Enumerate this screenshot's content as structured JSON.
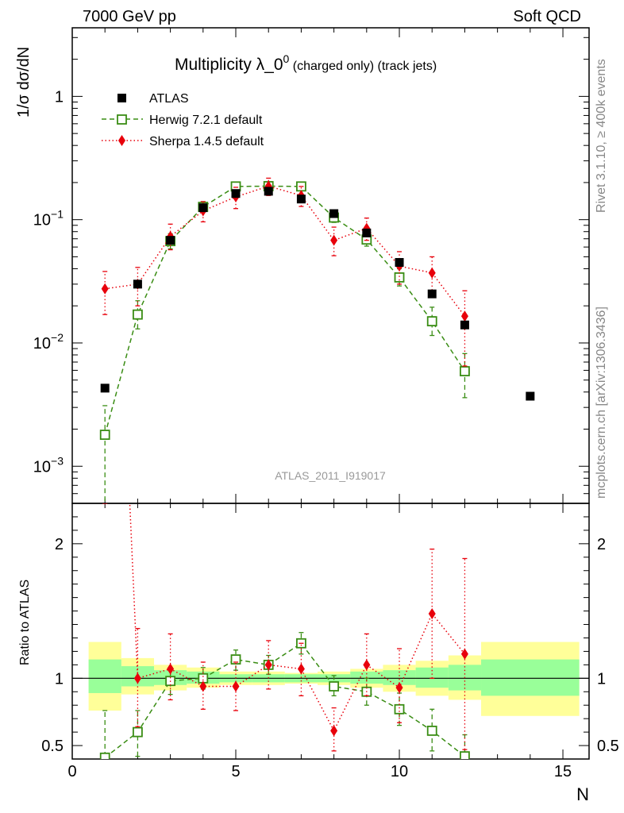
{
  "header": {
    "left": "7000 GeV pp",
    "right": "Soft QCD"
  },
  "side_labels": {
    "rivet": "Rivet 3.1.10, ≥ 400k events",
    "mcplots": "mcplots.cern.ch [arXiv:1306.3436]"
  },
  "chart_data": {
    "type": "scatter",
    "title_main": "Multiplicity λ_0",
    "title_sup": "0",
    "title_sub": " (charged only) (track jets)",
    "watermark": "ATLAS_2011_I919017",
    "xlabel": "N",
    "ylabel_top": "1/σ dσ/dN",
    "ylabel_bottom": "Ratio to ATLAS",
    "xlim": [
      0,
      15.8
    ],
    "ylim_top": [
      0.0005,
      3.6
    ],
    "ylim_bottom": [
      0.4,
      2.3
    ],
    "x_ticks": [
      {
        "v": 0,
        "label": "0"
      },
      {
        "v": 5,
        "label": "5"
      },
      {
        "v": 10,
        "label": "10"
      },
      {
        "v": 15,
        "label": "15"
      }
    ],
    "y_ticks_top": [
      {
        "v": 0.001,
        "base": "10",
        "exp": "−3"
      },
      {
        "v": 0.01,
        "base": "10",
        "exp": "−2"
      },
      {
        "v": 0.1,
        "base": "10",
        "exp": "−1"
      },
      {
        "v": 1,
        "base": "1",
        "exp": ""
      }
    ],
    "y_ticks_bottom": [
      {
        "v": 0.5,
        "label": "0.5"
      },
      {
        "v": 1,
        "label": "1"
      },
      {
        "v": 2,
        "label": "2"
      }
    ],
    "legend": [
      {
        "name": "ATLAS",
        "marker": "square-filled",
        "color": "#000000"
      },
      {
        "name": "Herwig 7.2.1 default",
        "marker": "square-open",
        "color": "#3a8d14"
      },
      {
        "name": "Sherpa 1.4.5 default",
        "marker": "diamond",
        "color": "#e8000b"
      }
    ],
    "bands": [
      {
        "x0": 0.5,
        "x1": 1.5,
        "green": [
          0.89,
          1.14
        ],
        "yellow": [
          0.76,
          1.27
        ]
      },
      {
        "x0": 1.5,
        "x1": 2.5,
        "green": [
          0.94,
          1.09
        ],
        "yellow": [
          0.88,
          1.15
        ]
      },
      {
        "x0": 2.5,
        "x1": 3.5,
        "green": [
          0.95,
          1.06
        ],
        "yellow": [
          0.91,
          1.1
        ]
      },
      {
        "x0": 3.5,
        "x1": 4.5,
        "green": [
          0.96,
          1.05
        ],
        "yellow": [
          0.93,
          1.08
        ]
      },
      {
        "x0": 4.5,
        "x1": 5.5,
        "green": [
          0.97,
          1.03
        ],
        "yellow": [
          0.95,
          1.05
        ]
      },
      {
        "x0": 5.5,
        "x1": 6.5,
        "green": [
          0.97,
          1.03
        ],
        "yellow": [
          0.95,
          1.05
        ]
      },
      {
        "x0": 6.5,
        "x1": 7.5,
        "green": [
          0.97,
          1.03
        ],
        "yellow": [
          0.96,
          1.04
        ]
      },
      {
        "x0": 7.5,
        "x1": 8.5,
        "green": [
          0.97,
          1.03
        ],
        "yellow": [
          0.95,
          1.05
        ]
      },
      {
        "x0": 8.5,
        "x1": 9.5,
        "green": [
          0.96,
          1.05
        ],
        "yellow": [
          0.93,
          1.07
        ]
      },
      {
        "x0": 9.5,
        "x1": 10.5,
        "green": [
          0.95,
          1.06
        ],
        "yellow": [
          0.9,
          1.1
        ]
      },
      {
        "x0": 10.5,
        "x1": 11.5,
        "green": [
          0.93,
          1.08
        ],
        "yellow": [
          0.87,
          1.13
        ]
      },
      {
        "x0": 11.5,
        "x1": 12.5,
        "green": [
          0.91,
          1.1
        ],
        "yellow": [
          0.84,
          1.17
        ]
      },
      {
        "x0": 12.5,
        "x1": 15.5,
        "green": [
          0.87,
          1.14
        ],
        "yellow": [
          0.72,
          1.27
        ]
      }
    ],
    "series": [
      {
        "name": "ATLAS",
        "points": [
          {
            "x": 1,
            "y": 0.0043
          },
          {
            "x": 2,
            "y": 0.03
          },
          {
            "x": 3,
            "y": 0.068
          },
          {
            "x": 4,
            "y": 0.125
          },
          {
            "x": 5,
            "y": 0.163
          },
          {
            "x": 6,
            "y": 0.17
          },
          {
            "x": 7,
            "y": 0.147
          },
          {
            "x": 8,
            "y": 0.112
          },
          {
            "x": 9,
            "y": 0.078
          },
          {
            "x": 10,
            "y": 0.045
          },
          {
            "x": 11,
            "y": 0.025
          },
          {
            "x": 12,
            "y": 0.014
          },
          {
            "x": 14,
            "y": 0.0037
          }
        ]
      },
      {
        "name": "Herwig 7.2.1 default",
        "points": [
          {
            "x": 1,
            "y": 0.0018,
            "lo": 0.00045,
            "hi": 0.0031
          },
          {
            "x": 2,
            "y": 0.017,
            "lo": 0.013,
            "hi": 0.022
          },
          {
            "x": 3,
            "y": 0.067,
            "lo": 0.058,
            "hi": 0.077
          },
          {
            "x": 4,
            "y": 0.127,
            "lo": 0.115,
            "hi": 0.14
          },
          {
            "x": 5,
            "y": 0.186,
            "lo": 0.172,
            "hi": 0.2
          },
          {
            "x": 6,
            "y": 0.187,
            "lo": 0.174,
            "hi": 0.2
          },
          {
            "x": 7,
            "y": 0.186,
            "lo": 0.172,
            "hi": 0.2
          },
          {
            "x": 8,
            "y": 0.104,
            "lo": 0.095,
            "hi": 0.114
          },
          {
            "x": 9,
            "y": 0.069,
            "lo": 0.061,
            "hi": 0.078
          },
          {
            "x": 10,
            "y": 0.034,
            "lo": 0.029,
            "hi": 0.04
          },
          {
            "x": 11,
            "y": 0.015,
            "lo": 0.0115,
            "hi": 0.0195
          },
          {
            "x": 12,
            "y": 0.0059,
            "lo": 0.0036,
            "hi": 0.0082
          }
        ],
        "ratio": [
          {
            "x": 1,
            "y": 0.41,
            "lo": 0.3,
            "hi": 0.76
          },
          {
            "x": 2,
            "y": 0.6,
            "lo": 0.42,
            "hi": 0.76
          },
          {
            "x": 3,
            "y": 0.98,
            "lo": 0.88,
            "hi": 1.08
          },
          {
            "x": 4,
            "y": 1.0,
            "lo": 0.92,
            "hi": 1.08
          },
          {
            "x": 5,
            "y": 1.14,
            "lo": 1.06,
            "hi": 1.21
          },
          {
            "x": 6,
            "y": 1.1,
            "lo": 1.03,
            "hi": 1.17
          },
          {
            "x": 7,
            "y": 1.26,
            "lo": 1.18,
            "hi": 1.34
          },
          {
            "x": 8,
            "y": 0.94,
            "lo": 0.87,
            "hi": 1.02
          },
          {
            "x": 9,
            "y": 0.9,
            "lo": 0.8,
            "hi": 1.0
          },
          {
            "x": 10,
            "y": 0.77,
            "lo": 0.65,
            "hi": 0.89
          },
          {
            "x": 11,
            "y": 0.61,
            "lo": 0.46,
            "hi": 0.77
          },
          {
            "x": 12,
            "y": 0.42,
            "lo": 0.26,
            "hi": 0.58
          }
        ]
      },
      {
        "name": "Sherpa 1.4.5 default",
        "points": [
          {
            "x": 1,
            "y": 0.0275,
            "lo": 0.017,
            "hi": 0.038
          },
          {
            "x": 2,
            "y": 0.03,
            "lo": 0.02,
            "hi": 0.041
          },
          {
            "x": 3,
            "y": 0.073,
            "lo": 0.057,
            "hi": 0.092
          },
          {
            "x": 4,
            "y": 0.118,
            "lo": 0.096,
            "hi": 0.14
          },
          {
            "x": 5,
            "y": 0.153,
            "lo": 0.123,
            "hi": 0.183
          },
          {
            "x": 6,
            "y": 0.187,
            "lo": 0.157,
            "hi": 0.217
          },
          {
            "x": 7,
            "y": 0.157,
            "lo": 0.128,
            "hi": 0.186
          },
          {
            "x": 8,
            "y": 0.068,
            "lo": 0.051,
            "hi": 0.087
          },
          {
            "x": 9,
            "y": 0.085,
            "lo": 0.068,
            "hi": 0.103
          },
          {
            "x": 10,
            "y": 0.042,
            "lo": 0.03,
            "hi": 0.055
          },
          {
            "x": 11,
            "y": 0.037,
            "lo": 0.025,
            "hi": 0.05
          },
          {
            "x": 12,
            "y": 0.0165,
            "lo": 0.0065,
            "hi": 0.0265
          }
        ],
        "ratio": [
          {
            "x": 1,
            "y": 6.4,
            "lo": 2.3,
            "hi": 9.0
          },
          {
            "x": 2,
            "y": 1.0,
            "lo": 0.64,
            "hi": 1.37
          },
          {
            "x": 3,
            "y": 1.07,
            "lo": 0.84,
            "hi": 1.33
          },
          {
            "x": 4,
            "y": 0.94,
            "lo": 0.77,
            "hi": 1.12
          },
          {
            "x": 5,
            "y": 0.94,
            "lo": 0.76,
            "hi": 1.12
          },
          {
            "x": 6,
            "y": 1.1,
            "lo": 0.92,
            "hi": 1.28
          },
          {
            "x": 7,
            "y": 1.07,
            "lo": 0.87,
            "hi": 1.26
          },
          {
            "x": 8,
            "y": 0.61,
            "lo": 0.46,
            "hi": 0.78
          },
          {
            "x": 9,
            "y": 1.1,
            "lo": 0.87,
            "hi": 1.33
          },
          {
            "x": 10,
            "y": 0.93,
            "lo": 0.67,
            "hi": 1.22
          },
          {
            "x": 11,
            "y": 1.48,
            "lo": 1.0,
            "hi": 1.96
          },
          {
            "x": 12,
            "y": 1.18,
            "lo": 0.47,
            "hi": 1.89
          }
        ]
      }
    ]
  }
}
